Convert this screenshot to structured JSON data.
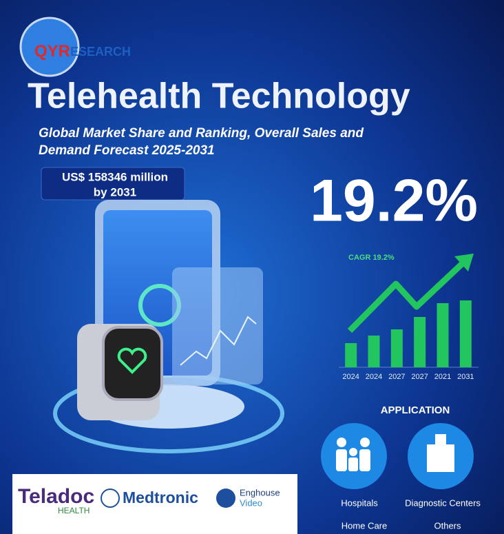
{
  "logo": {
    "accent": "QYR",
    "rest": "ESEARCH"
  },
  "title": "Telehealth Technology",
  "subtitle": [
    "Global Market Share and Ranking, Overall Sales and",
    "Demand Forecast 2025-2031"
  ],
  "market_size": [
    "US$ 158346 million",
    "by 2031"
  ],
  "cagr": "19.2%",
  "chart_data": {
    "type": "bar",
    "title": "CAGR 19.2%",
    "categories": [
      "2024",
      "2024",
      "2027",
      "2027",
      "2021",
      "2031"
    ],
    "values": [
      35,
      46,
      55,
      73,
      93,
      97
    ],
    "color": "#22c55e",
    "ylim": [
      0,
      123
    ]
  },
  "application": {
    "heading": "APPLICATION",
    "items": [
      "Hospitals",
      "Diagnostic Centers",
      "Home Care",
      "Others"
    ]
  },
  "partners": {
    "teladoc": "Teladoc",
    "teladoc_sub": "HEALTH",
    "medtronic": "Medtronic",
    "enghouse": "Enghouse",
    "enghouse_sub": "Video"
  }
}
